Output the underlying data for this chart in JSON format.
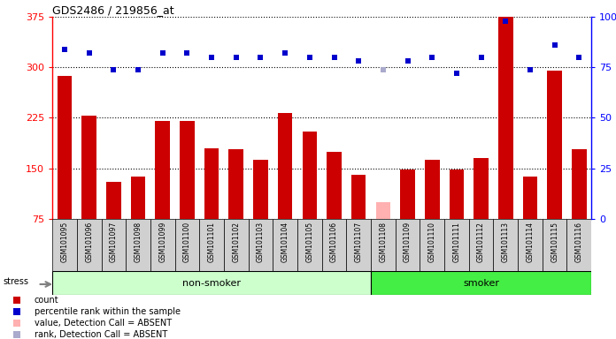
{
  "title": "GDS2486 / 219856_at",
  "samples": [
    "GSM101095",
    "GSM101096",
    "GSM101097",
    "GSM101098",
    "GSM101099",
    "GSM101100",
    "GSM101101",
    "GSM101102",
    "GSM101103",
    "GSM101104",
    "GSM101105",
    "GSM101106",
    "GSM101107",
    "GSM101108",
    "GSM101109",
    "GSM101110",
    "GSM101111",
    "GSM101112",
    "GSM101113",
    "GSM101114",
    "GSM101115",
    "GSM101116"
  ],
  "count_values": [
    287,
    228,
    130,
    138,
    220,
    220,
    180,
    178,
    162,
    232,
    205,
    175,
    140,
    100,
    148,
    163,
    148,
    165,
    375,
    138,
    295,
    178
  ],
  "percentile_values": [
    84,
    82,
    74,
    74,
    82,
    82,
    80,
    80,
    80,
    82,
    80,
    80,
    78,
    74,
    78,
    80,
    72,
    80,
    98,
    74,
    86,
    80
  ],
  "absent_mask": [
    false,
    false,
    false,
    false,
    false,
    false,
    false,
    false,
    false,
    false,
    false,
    false,
    false,
    true,
    false,
    false,
    false,
    false,
    false,
    false,
    false,
    false
  ],
  "non_smoker_count": 13,
  "ylim_left": [
    75,
    375
  ],
  "ylim_right": [
    0,
    100
  ],
  "yticks_left": [
    75,
    150,
    225,
    300,
    375
  ],
  "yticks_right": [
    0,
    25,
    50,
    75,
    100
  ],
  "bar_color_present": "#cc0000",
  "bar_color_absent": "#ffb0b0",
  "dot_color_present": "#0000cc",
  "dot_color_absent": "#aaaacc",
  "nonsmoker_color": "#ccffcc",
  "smoker_color": "#44ee44",
  "tick_bg_color": "#d0d0d0",
  "legend_items": [
    {
      "label": "count",
      "color": "#cc0000"
    },
    {
      "label": "percentile rank within the sample",
      "color": "#0000cc"
    },
    {
      "label": "value, Detection Call = ABSENT",
      "color": "#ffb0b0"
    },
    {
      "label": "rank, Detection Call = ABSENT",
      "color": "#aaaacc"
    }
  ]
}
